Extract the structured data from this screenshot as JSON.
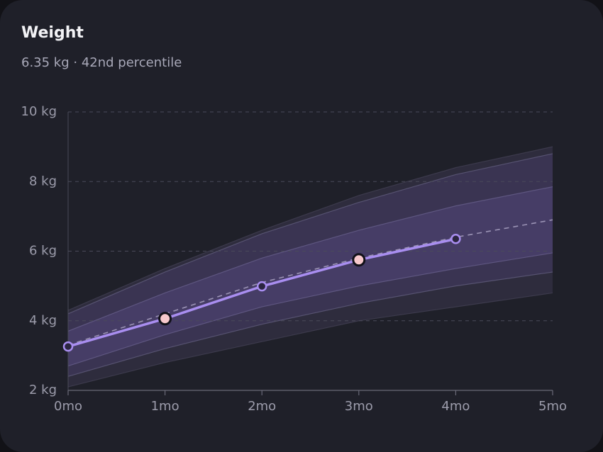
{
  "chart_data": {
    "type": "growth",
    "title": "Weight",
    "subtitle": "6.35 kg · 42nd percentile",
    "x": [
      0,
      1,
      2,
      3,
      4,
      5
    ],
    "xlim": [
      0,
      5
    ],
    "xticks": [
      {
        "value": 0,
        "label": "0mo"
      },
      {
        "value": 1,
        "label": "1mo"
      },
      {
        "value": 2,
        "label": "2mo"
      },
      {
        "value": 3,
        "label": "3mo"
      },
      {
        "value": 4,
        "label": "4mo"
      },
      {
        "value": 5,
        "label": "5mo"
      }
    ],
    "ylim": [
      2,
      10
    ],
    "yticks": [
      {
        "value": 2,
        "label": "2 kg"
      },
      {
        "value": 4,
        "label": "4 kg"
      },
      {
        "value": 6,
        "label": "6 kg"
      },
      {
        "value": 8,
        "label": "8 kg"
      },
      {
        "value": 10,
        "label": "10 kg"
      }
    ],
    "grid": true,
    "percentile_curves": [
      {
        "color": "#3c3a4c",
        "values": [
          4.3,
          5.5,
          6.6,
          7.6,
          8.4,
          9.0
        ]
      },
      {
        "color": "#565270",
        "values": [
          4.2,
          5.4,
          6.5,
          7.4,
          8.2,
          8.8
        ]
      },
      {
        "color": "#5e5680",
        "values": [
          3.7,
          4.8,
          5.8,
          6.6,
          7.3,
          7.85
        ]
      },
      {
        "color": "#5e5680",
        "values": [
          2.7,
          3.6,
          4.4,
          5.0,
          5.5,
          5.95
        ]
      },
      {
        "color": "#565270",
        "values": [
          2.4,
          3.2,
          3.9,
          4.5,
          5.0,
          5.4
        ]
      },
      {
        "color": "#3c3a4c",
        "values": [
          2.1,
          2.8,
          3.4,
          4.0,
          4.4,
          4.8
        ]
      }
    ],
    "band_colors": [
      "#2e2c3d",
      "#3a3452",
      "#463d66",
      "#3a3452",
      "#2e2c3d"
    ],
    "median": {
      "color": "#9b93b5",
      "values": [
        3.3,
        4.2,
        5.1,
        5.8,
        6.4,
        6.9
      ]
    },
    "series": [
      {
        "color": "#a98ef0",
        "x": [
          0,
          1,
          2,
          3,
          4
        ],
        "values": [
          3.26,
          4.06,
          4.99,
          5.75,
          6.35
        ],
        "marker_fills": [
          "#2b2540",
          "#f7c9cc",
          "#2b2540",
          "#f7c9cc",
          "#2b2540"
        ]
      }
    ]
  }
}
